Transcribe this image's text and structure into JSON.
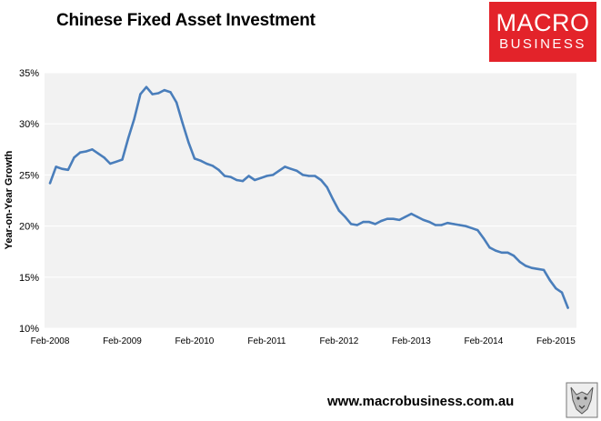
{
  "header": {
    "title": "Chinese Fixed Asset Investment"
  },
  "logo": {
    "line1": "MACRO",
    "line2": "BUSINESS",
    "background_color": "#e3232a",
    "text_color": "#ffffff"
  },
  "footer": {
    "website": "www.macrobusiness.com.au"
  },
  "colors": {
    "line": "#4a7ebb",
    "plot_background": "#f2f2f2",
    "gridline": "#ffffff"
  },
  "chart_data": {
    "type": "line",
    "title": "Chinese Fixed Asset Investment",
    "xlabel": "",
    "ylabel": "Year-on-Year Growth",
    "ylim": [
      10,
      35
    ],
    "y_ticks": [
      10,
      15,
      20,
      25,
      30,
      35
    ],
    "y_tick_labels": [
      "10%",
      "15%",
      "20%",
      "25%",
      "30%",
      "35%"
    ],
    "x_range": [
      "2008-02",
      "2015-03"
    ],
    "x_ticks": [
      "2008-02",
      "2009-02",
      "2010-02",
      "2011-02",
      "2012-02",
      "2013-02",
      "2014-02",
      "2015-02"
    ],
    "x_tick_labels": [
      "Feb-2008",
      "Feb-2009",
      "Feb-2010",
      "Feb-2011",
      "Feb-2012",
      "Feb-2013",
      "Feb-2014",
      "Feb-2015"
    ],
    "grid": "horizontal",
    "legend": "none",
    "series": [
      {
        "color": "#4a7ebb",
        "points": [
          [
            "2008-02",
            24.2
          ],
          [
            "2008-03",
            25.8
          ],
          [
            "2008-04",
            25.6
          ],
          [
            "2008-05",
            25.5
          ],
          [
            "2008-06",
            26.7
          ],
          [
            "2008-07",
            27.2
          ],
          [
            "2008-08",
            27.3
          ],
          [
            "2008-09",
            27.5
          ],
          [
            "2008-10",
            27.1
          ],
          [
            "2008-11",
            26.7
          ],
          [
            "2008-12",
            26.1
          ],
          [
            "2009-01",
            26.3
          ],
          [
            "2009-02",
            26.5
          ],
          [
            "2009-03",
            28.6
          ],
          [
            "2009-04",
            30.5
          ],
          [
            "2009-05",
            32.9
          ],
          [
            "2009-06",
            33.6
          ],
          [
            "2009-07",
            32.9
          ],
          [
            "2009-08",
            33.0
          ],
          [
            "2009-09",
            33.3
          ],
          [
            "2009-10",
            33.1
          ],
          [
            "2009-11",
            32.1
          ],
          [
            "2009-12",
            30.1
          ],
          [
            "2010-01",
            28.2
          ],
          [
            "2010-02",
            26.6
          ],
          [
            "2010-03",
            26.4
          ],
          [
            "2010-04",
            26.1
          ],
          [
            "2010-05",
            25.9
          ],
          [
            "2010-06",
            25.5
          ],
          [
            "2010-07",
            24.9
          ],
          [
            "2010-08",
            24.8
          ],
          [
            "2010-09",
            24.5
          ],
          [
            "2010-10",
            24.4
          ],
          [
            "2010-11",
            24.9
          ],
          [
            "2010-12",
            24.5
          ],
          [
            "2011-01",
            24.7
          ],
          [
            "2011-02",
            24.9
          ],
          [
            "2011-03",
            25.0
          ],
          [
            "2011-04",
            25.4
          ],
          [
            "2011-05",
            25.8
          ],
          [
            "2011-06",
            25.6
          ],
          [
            "2011-07",
            25.4
          ],
          [
            "2011-08",
            25.0
          ],
          [
            "2011-09",
            24.9
          ],
          [
            "2011-10",
            24.9
          ],
          [
            "2011-11",
            24.5
          ],
          [
            "2011-12",
            23.8
          ],
          [
            "2012-01",
            22.6
          ],
          [
            "2012-02",
            21.5
          ],
          [
            "2012-03",
            20.9
          ],
          [
            "2012-04",
            20.2
          ],
          [
            "2012-05",
            20.1
          ],
          [
            "2012-06",
            20.4
          ],
          [
            "2012-07",
            20.4
          ],
          [
            "2012-08",
            20.2
          ],
          [
            "2012-09",
            20.5
          ],
          [
            "2012-10",
            20.7
          ],
          [
            "2012-11",
            20.7
          ],
          [
            "2012-12",
            20.6
          ],
          [
            "2013-01",
            20.9
          ],
          [
            "2013-02",
            21.2
          ],
          [
            "2013-03",
            20.9
          ],
          [
            "2013-04",
            20.6
          ],
          [
            "2013-05",
            20.4
          ],
          [
            "2013-06",
            20.1
          ],
          [
            "2013-07",
            20.1
          ],
          [
            "2013-08",
            20.3
          ],
          [
            "2013-09",
            20.2
          ],
          [
            "2013-10",
            20.1
          ],
          [
            "2013-11",
            20.0
          ],
          [
            "2013-12",
            19.8
          ],
          [
            "2014-01",
            19.6
          ],
          [
            "2014-02",
            18.8
          ],
          [
            "2014-03",
            17.9
          ],
          [
            "2014-04",
            17.6
          ],
          [
            "2014-05",
            17.4
          ],
          [
            "2014-06",
            17.4
          ],
          [
            "2014-07",
            17.1
          ],
          [
            "2014-08",
            16.5
          ],
          [
            "2014-09",
            16.1
          ],
          [
            "2014-10",
            15.9
          ],
          [
            "2014-11",
            15.8
          ],
          [
            "2014-12",
            15.7
          ],
          [
            "2015-01",
            14.7
          ],
          [
            "2015-02",
            13.9
          ],
          [
            "2015-03",
            13.5
          ],
          [
            "2015-04",
            12.0
          ]
        ]
      }
    ]
  }
}
